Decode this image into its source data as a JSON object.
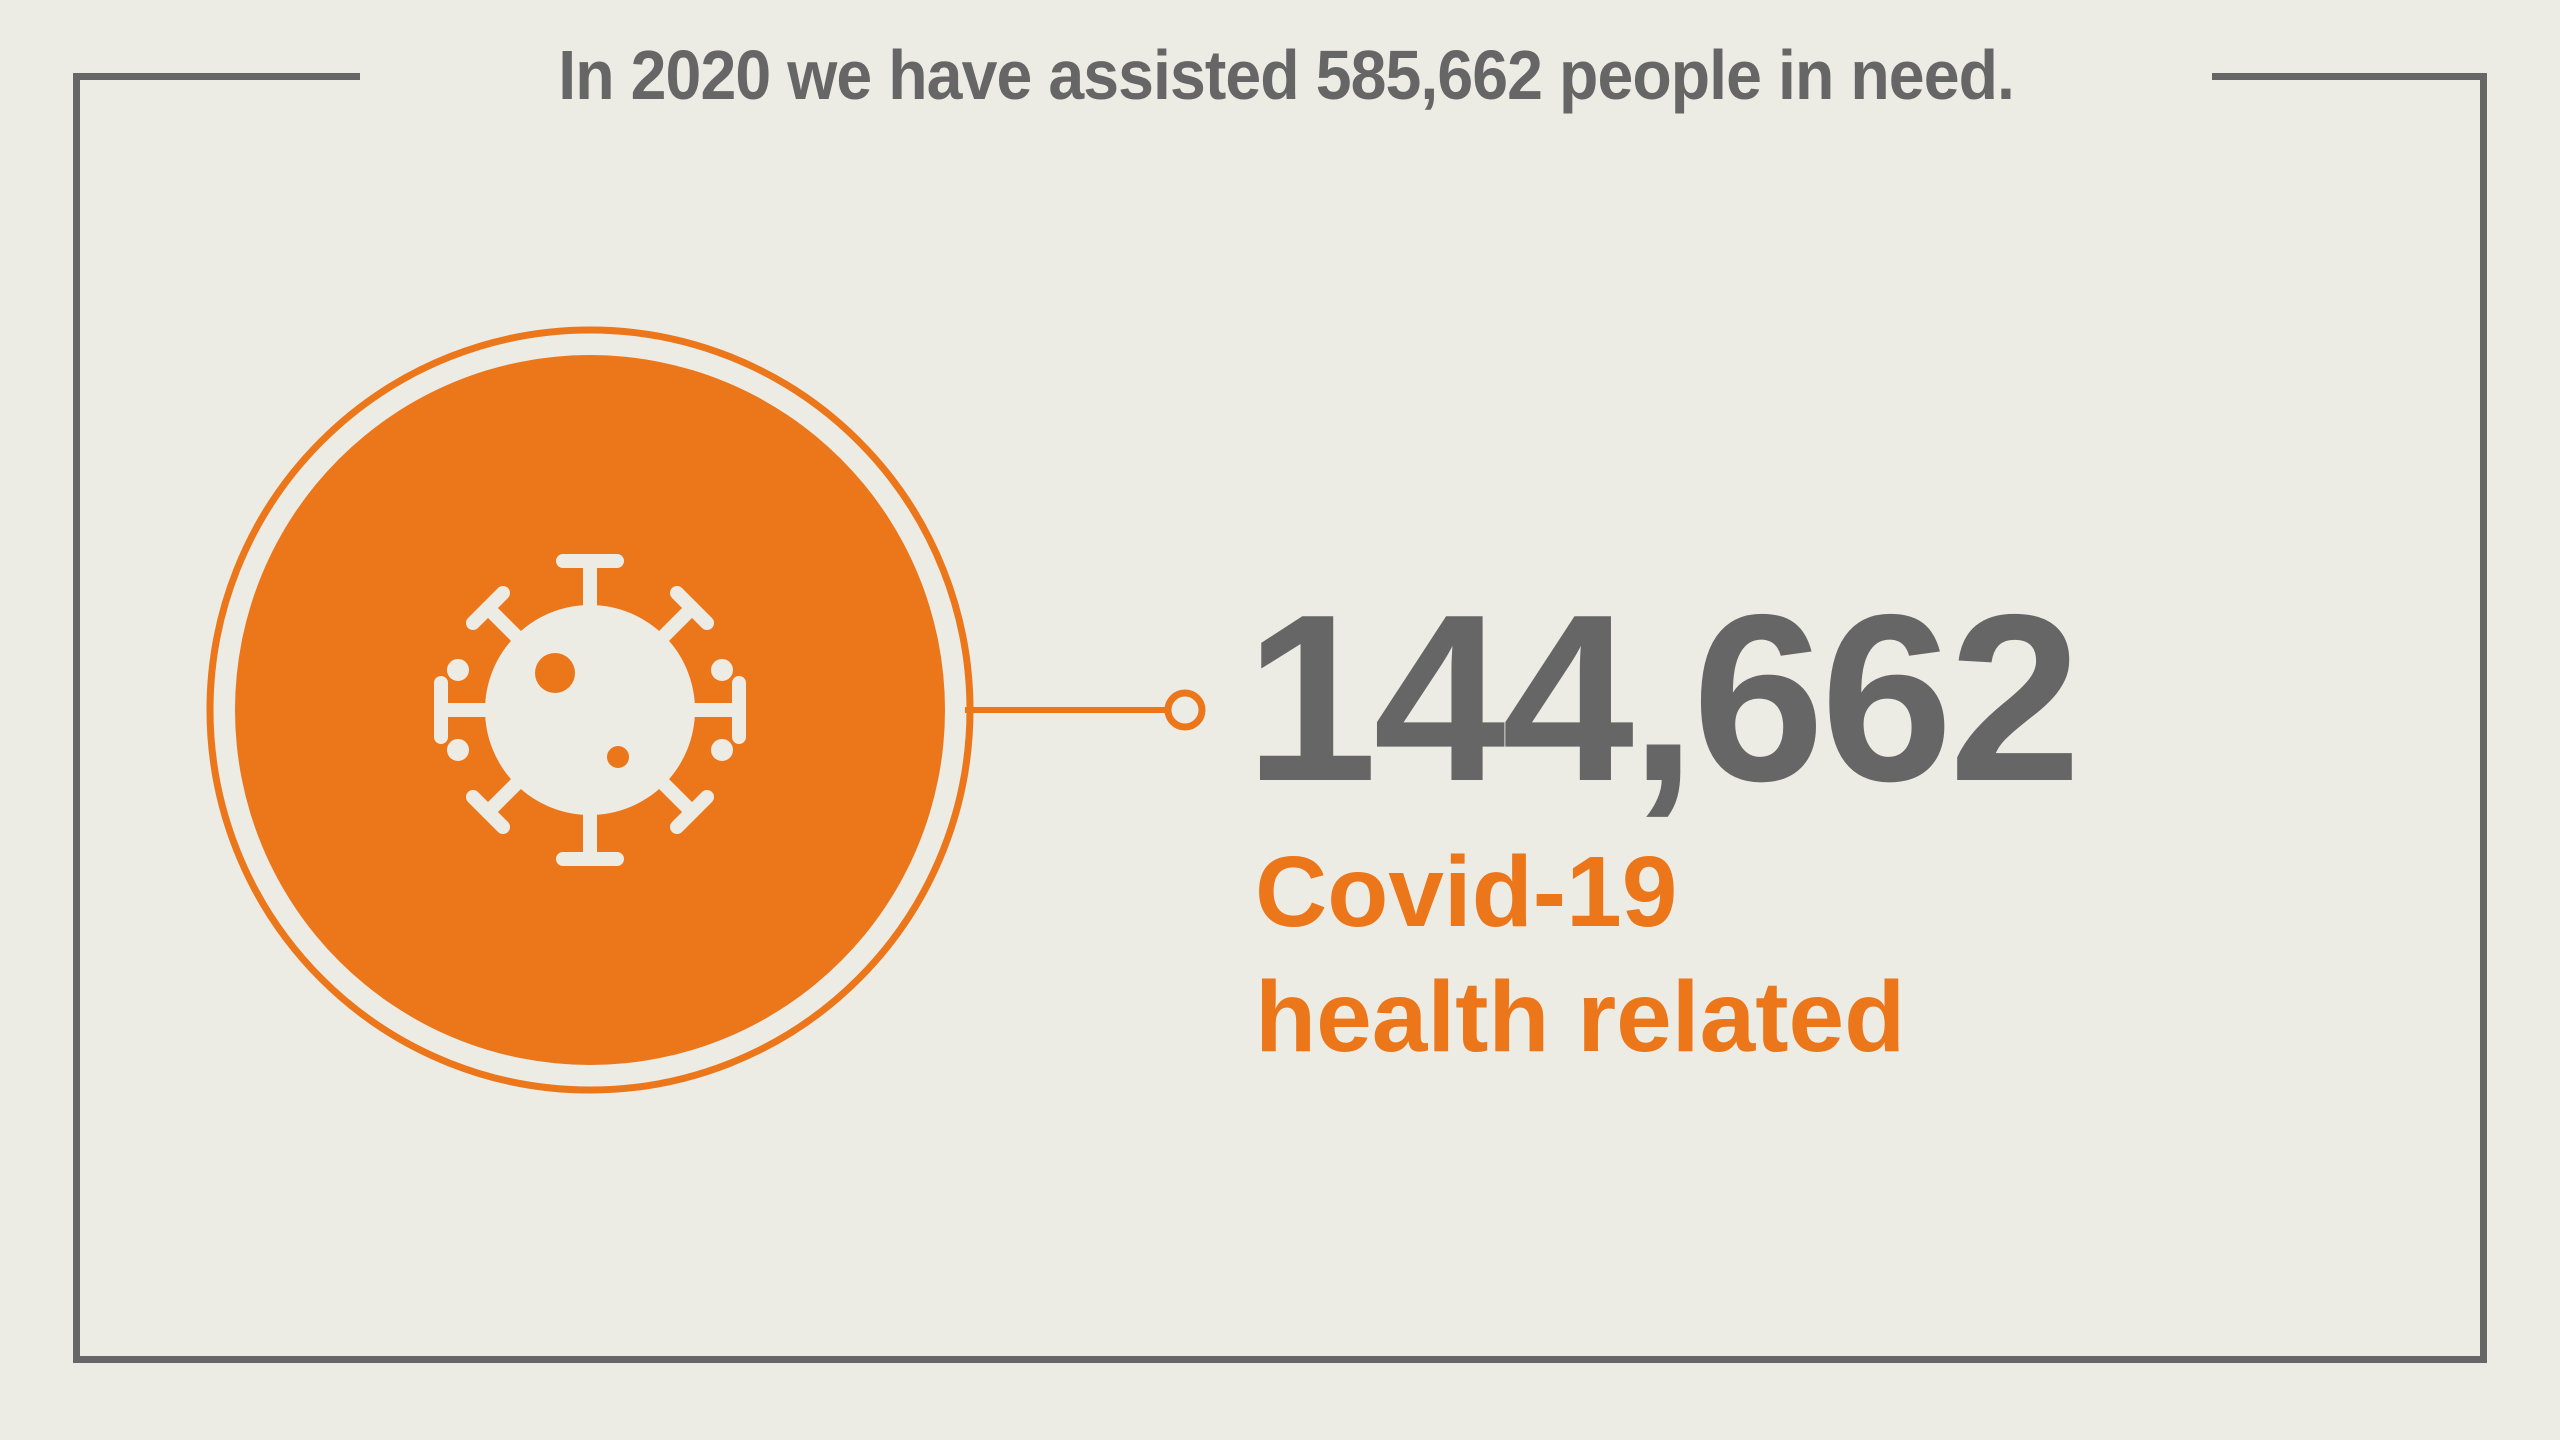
{
  "headline": "In 2020 we have assisted 585,662 people in need.",
  "stat": {
    "value": "144,662",
    "label_line1": "Covid-19",
    "label_line2": "health related"
  },
  "icon": "virus-icon",
  "colors": {
    "background": "#ECEBE4",
    "accent": "#EC761A",
    "text_dark": "#666666"
  }
}
